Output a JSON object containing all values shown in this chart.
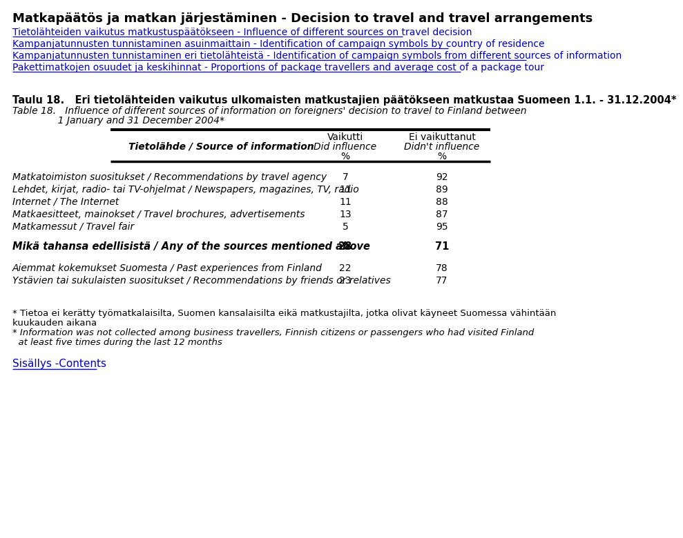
{
  "title_bold": "Matkapäätös ja matkan järjestäminen - Decision to travel and travel arrangements",
  "links": [
    "Tietolähteiden vaikutus matkustuspäätökseen - Influence of different sources on travel decision",
    "Kampanjatunnusten tunnistaminen asuinmaittain - Identification of campaign symbols by country of residence",
    "Kampanjatunnusten tunnistaminen eri tietolähteistä - Identification of campaign symbols from different sources of information",
    "Pakettimatkojen osuudet ja keskihinnat - Proportions of package travellers and average cost of a package tour"
  ],
  "table_title_fi": "Taulu 18.   Eri tietolähteiden vaikutus ulkomaisten matkustajien päätökseen matkustaa Suomeen 1.1. - 31.12.2004*",
  "table_title_en_line1": "Table 18.   Influence of different sources of information on foreigners' decision to travel to Finland between",
  "table_title_en_line2": "               1 January and 31 December 2004*",
  "col_header_left": "Tietolähde / Source of information",
  "col_header_mid1_line1": "Vaikutti",
  "col_header_mid1_line2": "Did influence",
  "col_header_mid1_line3": "%",
  "col_header_mid2_line1": "Ei vaikuttanut",
  "col_header_mid2_line2": "Didn't influence",
  "col_header_mid2_line3": "%",
  "rows": [
    {
      "label": "Matkatoimiston suositukset / Recommendations by travel agency",
      "v1": "7",
      "v2": "92"
    },
    {
      "label": "Lehdet, kirjat, radio- tai TV-ohjelmat / Newspapers, magazines, TV, radio",
      "v1": "11",
      "v2": "89"
    },
    {
      "label": "Internet / The Internet",
      "v1": "11",
      "v2": "88"
    },
    {
      "label": "Matkaesitteet, mainokset / Travel brochures, advertisements",
      "v1": "13",
      "v2": "87"
    },
    {
      "label": "Matkamessut / Travel fair",
      "v1": "5",
      "v2": "95"
    }
  ],
  "bold_row": {
    "label": "Mikä tahansa edellisistä / Any of the sources mentioned above",
    "v1": "28",
    "v2": "71"
  },
  "extra_rows": [
    {
      "label": "Aiemmat kokemukset Suomesta / Past experiences from Finland",
      "v1": "22",
      "v2": "78"
    },
    {
      "label": "Ystävien tai sukulaisten suositukset / Recommendations by friends or relatives",
      "v1": "23",
      "v2": "77"
    }
  ],
  "footnote1_fi": "* Tietoa ei kerätty työmatkalaisilta, Suomen kansalaisilta eikä matkustajilta, jotka olivat käyneet Suomessa vähintään",
  "footnote1_fi2": "kuukauden aikana",
  "footnote1_en_line1": "* Information was not collected among business travellers, Finnish citizens or passengers who had visited Finland",
  "footnote1_en_line2": "  at least five times during the last 12 months",
  "contents_link": "Sisällys -Contents",
  "bg_color": "#ffffff",
  "text_color": "#000000",
  "link_color": "#0000cc",
  "header_line_color": "#000000",
  "title_fs": 13,
  "link_fs": 10,
  "table_title_fi_fs": 10.5,
  "table_title_en_fs": 10,
  "header_fs": 10,
  "row_fs": 10,
  "bold_row_fs": 10.5,
  "footnote_fs": 9.5,
  "contents_fs": 11
}
